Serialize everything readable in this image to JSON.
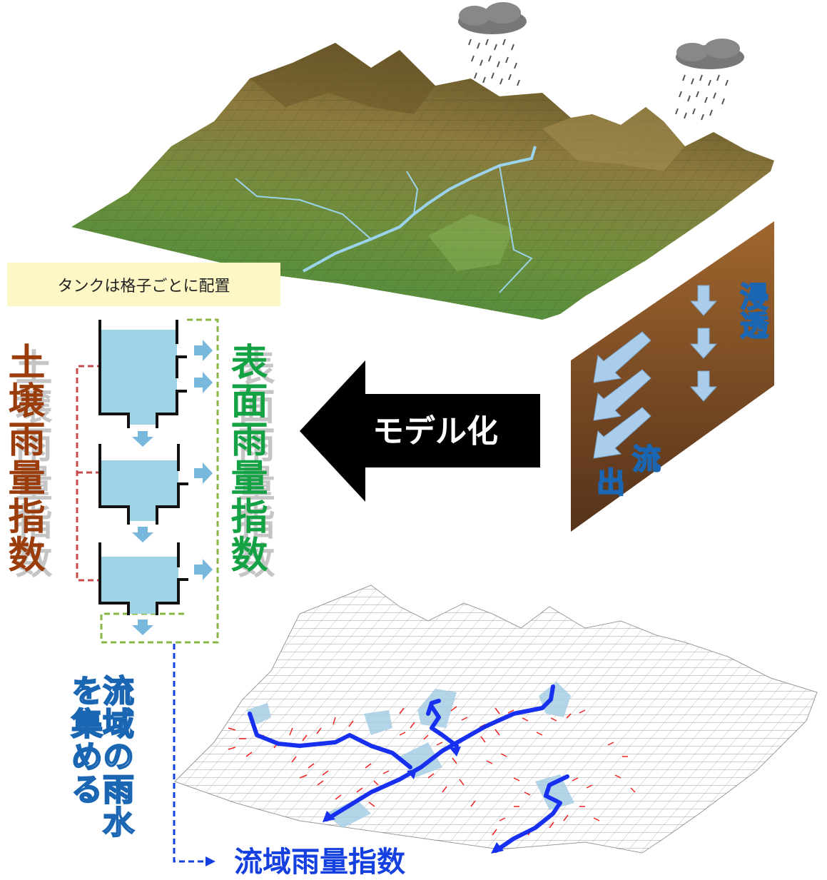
{
  "note": {
    "text": "タンクは格子ごとに配置"
  },
  "labels": {
    "soil_index": "土壌雨量指数",
    "surface_index": "表面雨量指数",
    "model_arrow": "モデル化",
    "infiltration": "浸透",
    "outflow_top": "流",
    "outflow_bottom": "出",
    "basin_collect": "流域の雨水を集める",
    "basin_index": "流域雨量指数"
  },
  "colors": {
    "soil_label": "#9a3c0c",
    "surface_label": "#14a245",
    "basin_label_outline": "#1a66b3",
    "basin_index": "#1540e0",
    "tank_water": "#9fd4e6",
    "river": "#1730f0",
    "flow_arrows": "#ee2222",
    "terrain_green": "#5f8f3a",
    "terrain_brown": "#8c7a3e",
    "soil_block": "#7b4a22"
  },
  "icons": [
    "rain-cloud-icon",
    "down-arrow-icon",
    "right-arrow-icon",
    "big-left-arrow-icon"
  ]
}
